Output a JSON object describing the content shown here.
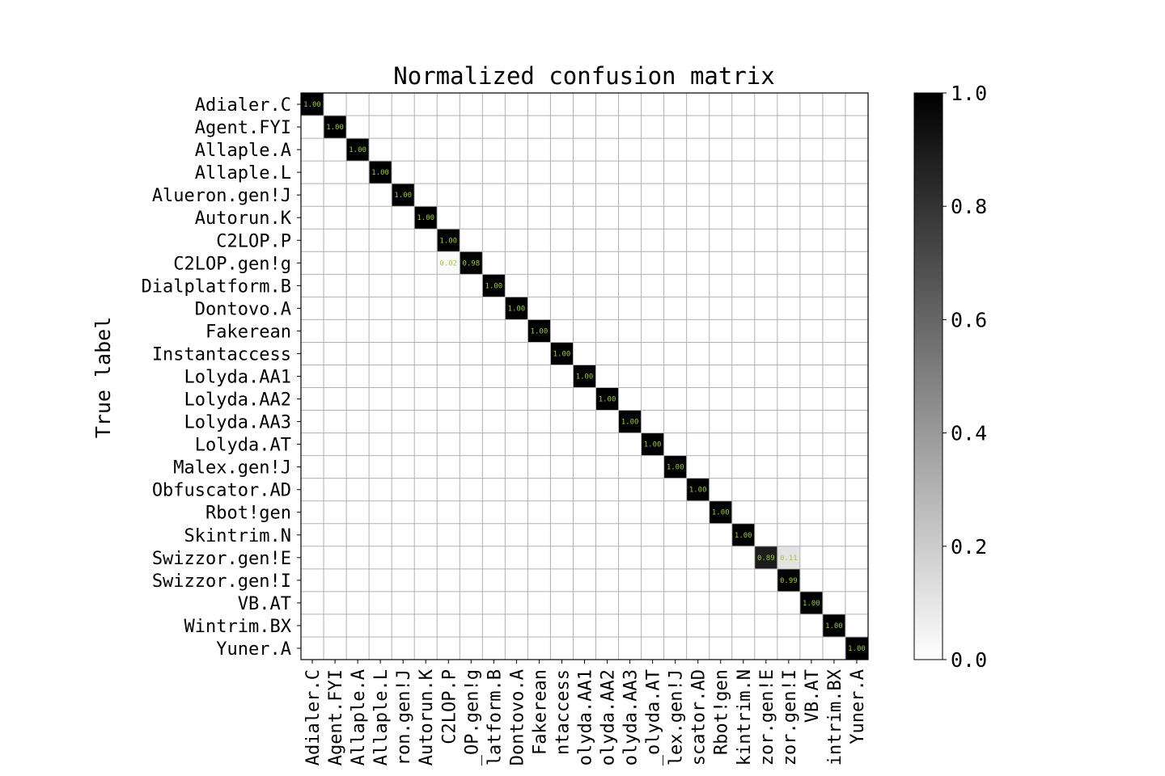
{
  "chart_data": {
    "type": "heatmap",
    "title": "Normalized confusion matrix",
    "ylabel": "True label",
    "xlabel": "",
    "labels": [
      "Adialer.C",
      "Agent.FYI",
      "Allaple.A",
      "Allaple.L",
      "Alueron.gen!J",
      "Autorun.K",
      "C2LOP.P",
      "C2LOP.gen!g",
      "Dialplatform.B",
      "Dontovo.A",
      "Fakerean",
      "Instantaccess",
      "Lolyda.AA1",
      "Lolyda.AA2",
      "Lolyda.AA3",
      "Lolyda.AT",
      "Malex.gen!J",
      "Obfuscator.AD",
      "Rbot!gen",
      "Skintrim.N",
      "Swizzor.gen!E",
      "Swizzor.gen!I",
      "VB.AT",
      "Wintrim.BX",
      "Yuner.A"
    ],
    "x_tick_labels_visible": [
      "Adialer.C",
      "Agent.FYI",
      "Allaple.A",
      "Allaple.L",
      "ron.gen!J",
      "Autorun.K",
      "C2LOP.P",
      "_OP.gen!g",
      "latform.B",
      "Dontovo.A",
      "Fakerean",
      "ntaccess",
      "olyda.AA1",
      "olyda.AA2",
      "olyda.AA3",
      "_olyda.AT",
      "lex.gen!J",
      "scator.AD",
      "Rbot!gen",
      "kintrim.N",
      "zor.gen!E",
      "zor.gen!I",
      "VB.AT",
      "intrim.BX",
      "Yuner.A"
    ],
    "cells": [
      {
        "row": 0,
        "col": 0,
        "value": 1.0,
        "label": "1.00"
      },
      {
        "row": 1,
        "col": 1,
        "value": 1.0,
        "label": "1.00"
      },
      {
        "row": 2,
        "col": 2,
        "value": 1.0,
        "label": "1.00"
      },
      {
        "row": 3,
        "col": 3,
        "value": 1.0,
        "label": "1.00"
      },
      {
        "row": 4,
        "col": 4,
        "value": 1.0,
        "label": "1.00"
      },
      {
        "row": 5,
        "col": 5,
        "value": 1.0,
        "label": "1.00"
      },
      {
        "row": 6,
        "col": 6,
        "value": 1.0,
        "label": "1.00"
      },
      {
        "row": 7,
        "col": 6,
        "value": 0.02,
        "label": "0.02"
      },
      {
        "row": 7,
        "col": 7,
        "value": 0.98,
        "label": "0.98"
      },
      {
        "row": 8,
        "col": 8,
        "value": 1.0,
        "label": "1.00"
      },
      {
        "row": 9,
        "col": 9,
        "value": 1.0,
        "label": "1.00"
      },
      {
        "row": 10,
        "col": 10,
        "value": 1.0,
        "label": "1.00"
      },
      {
        "row": 11,
        "col": 11,
        "value": 1.0,
        "label": "1.00"
      },
      {
        "row": 12,
        "col": 12,
        "value": 1.0,
        "label": "1.00"
      },
      {
        "row": 13,
        "col": 13,
        "value": 1.0,
        "label": "1.00"
      },
      {
        "row": 14,
        "col": 14,
        "value": 1.0,
        "label": "1.00"
      },
      {
        "row": 15,
        "col": 15,
        "value": 1.0,
        "label": "1.00"
      },
      {
        "row": 16,
        "col": 16,
        "value": 1.0,
        "label": "1.00"
      },
      {
        "row": 17,
        "col": 17,
        "value": 1.0,
        "label": "1.00"
      },
      {
        "row": 18,
        "col": 18,
        "value": 1.0,
        "label": "1.00"
      },
      {
        "row": 19,
        "col": 19,
        "value": 1.0,
        "label": "1.00"
      },
      {
        "row": 20,
        "col": 20,
        "value": 0.89,
        "label": "0.89"
      },
      {
        "row": 20,
        "col": 21,
        "value": 0.11,
        "label": "0.11"
      },
      {
        "row": 21,
        "col": 21,
        "value": 0.99,
        "label": "0.99"
      },
      {
        "row": 22,
        "col": 22,
        "value": 1.0,
        "label": "1.00"
      },
      {
        "row": 23,
        "col": 23,
        "value": 1.0,
        "label": "1.00"
      },
      {
        "row": 24,
        "col": 24,
        "value": 1.0,
        "label": "1.00"
      }
    ],
    "colormap": "greys",
    "colorbar": {
      "ticks": [
        "0.0",
        "0.2",
        "0.4",
        "0.6",
        "0.8",
        "1.0"
      ],
      "range": [
        0,
        1
      ]
    },
    "grid": true,
    "colors": {
      "cell_text": "#9acd32",
      "grid": "#b0b0b0",
      "low": "#ffffff",
      "high": "#000000"
    }
  }
}
